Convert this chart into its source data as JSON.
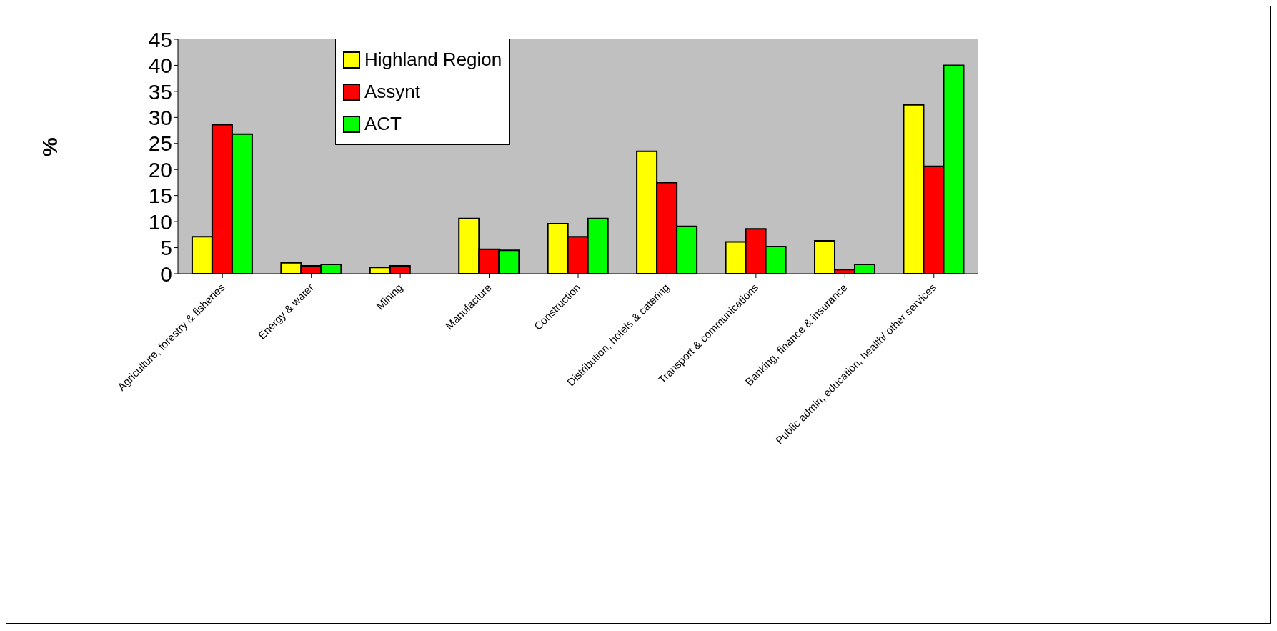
{
  "chart_data": {
    "type": "bar",
    "ylabel": "%",
    "categories": [
      "Agriculture, forestry & fisheries",
      "Energy & water",
      "Mining",
      "Manufacture",
      "Construction",
      "Distribution, hotels & catering",
      "Transport & communications",
      "Banking, finance & insurance",
      "Public admin, education, health/ other services"
    ],
    "series": [
      {
        "name": "Highland Region",
        "color": "#ffff00",
        "values": [
          7.1,
          2.1,
          1.2,
          10.6,
          9.6,
          23.5,
          6.1,
          6.3,
          32.4
        ]
      },
      {
        "name": "Assynt",
        "color": "#ff0000",
        "values": [
          28.6,
          1.5,
          1.5,
          4.7,
          7.1,
          17.5,
          8.6,
          0.8,
          20.6
        ]
      },
      {
        "name": "ACT",
        "color": "#00ff00",
        "values": [
          26.8,
          1.8,
          null,
          4.5,
          10.6,
          9.1,
          5.2,
          1.8,
          40
        ]
      }
    ],
    "ylim": [
      0,
      45
    ],
    "yticks": [
      0,
      5,
      10,
      15,
      20,
      25,
      30,
      35,
      40,
      45
    ],
    "grid": false,
    "legend": "top"
  }
}
